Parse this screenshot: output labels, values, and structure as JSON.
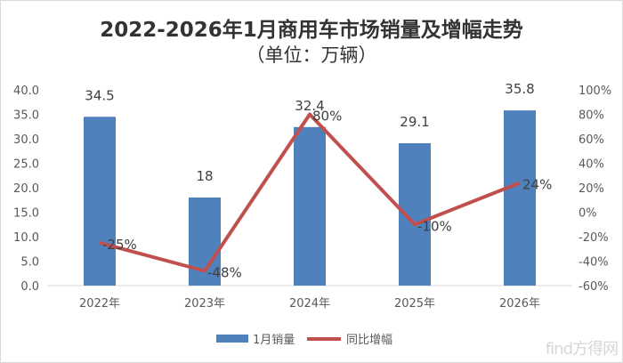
{
  "chart_data": {
    "type": "bar+line",
    "title": "2022-2026年1月商用车市场销量及增幅走势",
    "subtitle": "（单位：万辆）",
    "categories": [
      "2022年",
      "2023年",
      "2024年",
      "2025年",
      "2026年"
    ],
    "series": [
      {
        "name": "1月销量",
        "type": "bar",
        "axis": "left",
        "color": "#4f81bd",
        "values": [
          34.5,
          18,
          32.4,
          29.1,
          35.8
        ],
        "labels": [
          "34.5",
          "18",
          "32.4",
          "29.1",
          "35.8"
        ]
      },
      {
        "name": "同比增幅",
        "type": "line",
        "axis": "right",
        "color": "#c0504d",
        "values": [
          -25,
          -48,
          80,
          -10,
          24
        ],
        "labels": [
          "-25%",
          "-48%",
          "80%",
          "-10%",
          "24%"
        ]
      }
    ],
    "left_axis": {
      "min": 0,
      "max": 40,
      "step": 5,
      "ticks": [
        "0.0",
        "5.0",
        "10.0",
        "15.0",
        "20.0",
        "25.0",
        "30.0",
        "35.0",
        "40.0"
      ]
    },
    "right_axis": {
      "min": -60,
      "max": 100,
      "step": 20,
      "ticks": [
        "-60%",
        "-40%",
        "-20%",
        "0%",
        "20%",
        "40%",
        "60%",
        "80%",
        "100%"
      ]
    },
    "grid": false,
    "legend": "bottom"
  },
  "watermark": "find方得网"
}
